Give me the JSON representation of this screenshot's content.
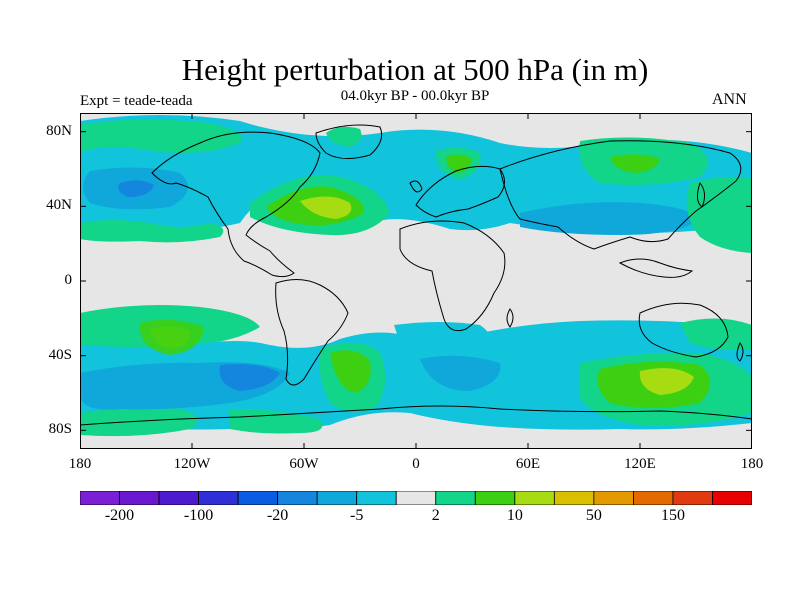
{
  "title": "Height perturbation at 500 hPa (in m)",
  "experiment": "Expt = teade-teada",
  "period": "04.0kyr BP - 00.0kyr BP",
  "season": "ANN",
  "lat_ticks": [
    {
      "value": 80,
      "label": "80N"
    },
    {
      "value": 40,
      "label": "40N"
    },
    {
      "value": 0,
      "label": "0"
    },
    {
      "value": -40,
      "label": "40S"
    },
    {
      "value": -80,
      "label": "80S"
    }
  ],
  "lon_ticks": [
    {
      "value": -180,
      "label": "180"
    },
    {
      "value": -120,
      "label": "120W"
    },
    {
      "value": -60,
      "label": "60W"
    },
    {
      "value": 0,
      "label": "0"
    },
    {
      "value": 60,
      "label": "60E"
    },
    {
      "value": 120,
      "label": "120E"
    },
    {
      "value": 180,
      "label": "180"
    }
  ],
  "colorbar": {
    "colors": [
      "#7a1fd6",
      "#6a17d0",
      "#4d1ad0",
      "#2f2fd8",
      "#0a5de0",
      "#1486de",
      "#10a8da",
      "#12c3dc",
      "#e6e6e6",
      "#12d58a",
      "#3ccf12",
      "#a8dc12",
      "#d8c000",
      "#e29a00",
      "#e46a00",
      "#e03a10",
      "#e80000"
    ],
    "labels": [
      {
        "boundary": 1,
        "text": "-200"
      },
      {
        "boundary": 3,
        "text": "-100"
      },
      {
        "boundary": 5,
        "text": "-20"
      },
      {
        "boundary": 7,
        "text": "-5"
      },
      {
        "boundary": 9,
        "text": "2"
      },
      {
        "boundary": 11,
        "text": "10"
      },
      {
        "boundary": 13,
        "text": "50"
      },
      {
        "boundary": 15,
        "text": "150"
      }
    ]
  },
  "colors": {
    "background": "#e6e6e6",
    "light_blue": "#12c3dc",
    "mid_blue": "#10a8da",
    "blue": "#1486de",
    "green": "#12d58a",
    "bright_green": "#3ccf12",
    "yellow_green": "#a8dc12",
    "coastline": "#000000"
  }
}
